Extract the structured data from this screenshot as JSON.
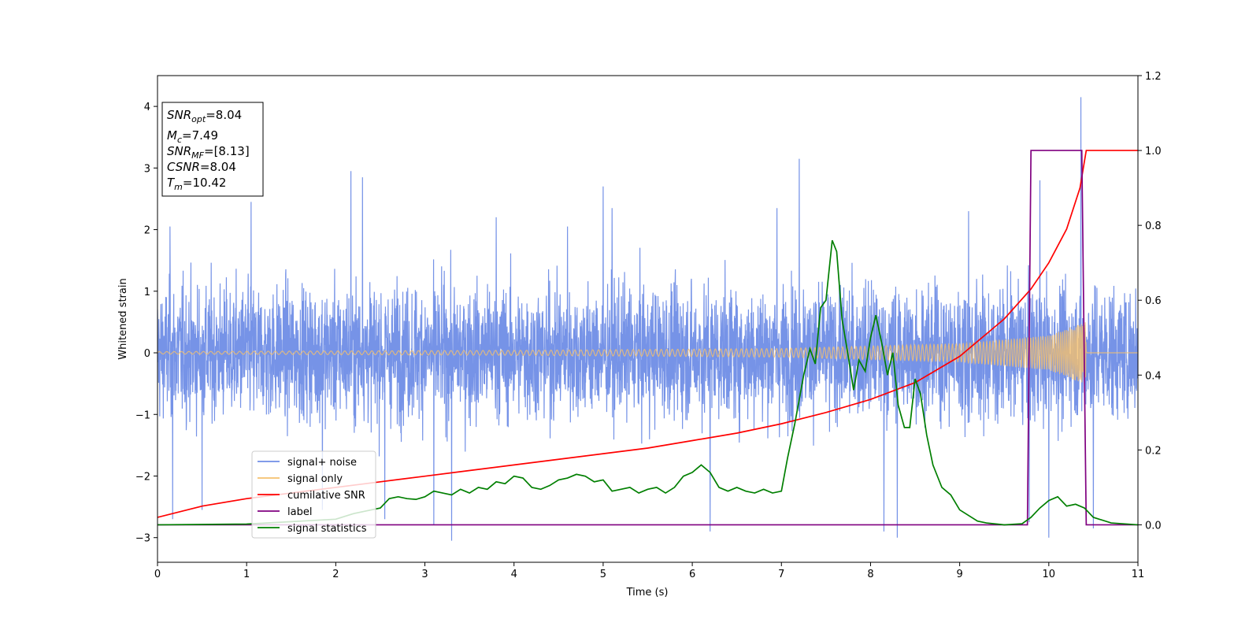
{
  "chart_data": {
    "type": "line",
    "xlabel": "Time (s)",
    "ylabel": "Whitened strain",
    "xlim": [
      0,
      11
    ],
    "ylim_left": [
      -3.4,
      4.5
    ],
    "ylim_right": [
      -0.1,
      1.2
    ],
    "x_ticks": [
      "0",
      "1",
      "2",
      "3",
      "4",
      "5",
      "6",
      "7",
      "8",
      "9",
      "10",
      "11"
    ],
    "y_ticks_left": [
      "−3",
      "−2",
      "−1",
      "0",
      "1",
      "2",
      "3",
      "4"
    ],
    "y_ticks_right": [
      "0.0",
      "0.2",
      "0.4",
      "0.6",
      "0.8",
      "1.0",
      "1.2"
    ],
    "grid": false,
    "legend_position": "lower-left",
    "legend": [
      {
        "label": "signal+ noise",
        "color": "#6f8de6"
      },
      {
        "label": "signal only",
        "color": "#f5c16e"
      },
      {
        "label": "cumilative SNR",
        "color": "#ff0000"
      },
      {
        "label": "label",
        "color": "#800080"
      },
      {
        "label": "signal statistics",
        "color": "#007f00"
      }
    ],
    "annotation_box": {
      "lines": [
        {
          "sym": "SNR",
          "sub": "opt",
          "val": "=8.04"
        },
        {
          "sym": "M",
          "sub": "c",
          "val": "=7.49"
        },
        {
          "sym": "SNR",
          "sub": "MF",
          "val": "=[8.13]"
        },
        {
          "sym": "CSNR",
          "sub": "",
          "val": "=8.04"
        },
        {
          "sym": "T",
          "sub": "m",
          "val": "=10.42"
        }
      ]
    },
    "series": [
      {
        "name": "signal+ noise",
        "axis": "left",
        "kind": "noise",
        "color": "#6f8de6",
        "x_range": [
          0,
          11
        ],
        "approx_amplitude": 1.3,
        "noise_peaks": [
          [
            0.14,
            2.05
          ],
          [
            0.17,
            -2.7
          ],
          [
            0.5,
            -2.55
          ],
          [
            1.05,
            2.45
          ],
          [
            1.85,
            -2.55
          ],
          [
            2.17,
            2.95
          ],
          [
            2.3,
            2.85
          ],
          [
            2.55,
            -2.7
          ],
          [
            3.3,
            -3.05
          ],
          [
            3.1,
            -2.8
          ],
          [
            3.8,
            2.2
          ],
          [
            4.6,
            2.05
          ],
          [
            5.0,
            2.7
          ],
          [
            5.1,
            2.35
          ],
          [
            6.2,
            -2.9
          ],
          [
            6.95,
            2.35
          ],
          [
            7.2,
            3.15
          ],
          [
            8.15,
            -2.9
          ],
          [
            8.3,
            -3.0
          ],
          [
            9.1,
            2.3
          ],
          [
            9.78,
            -2.75
          ],
          [
            9.9,
            2.8
          ],
          [
            10.0,
            2.65
          ],
          [
            10.0,
            -3.0
          ],
          [
            10.36,
            4.15
          ],
          [
            10.5,
            -2.85
          ]
        ]
      },
      {
        "name": "signal only",
        "axis": "left",
        "kind": "chirp",
        "color": "#f5c16e",
        "x_range": [
          0,
          10.42
        ],
        "envelope_points": [
          [
            0,
            0.02
          ],
          [
            4,
            0.04
          ],
          [
            7,
            0.07
          ],
          [
            9,
            0.15
          ],
          [
            10,
            0.28
          ],
          [
            10.3,
            0.45
          ],
          [
            10.42,
            0.5
          ]
        ]
      },
      {
        "name": "cumilative SNR",
        "axis": "right",
        "color": "#ff0000",
        "x": [
          0,
          0.5,
          1,
          1.5,
          2,
          2.5,
          3,
          3.5,
          4,
          4.5,
          5,
          5.5,
          6,
          6.5,
          7,
          7.5,
          8,
          8.5,
          9,
          9.5,
          9.8,
          10,
          10.2,
          10.35,
          10.42,
          10.5,
          11
        ],
        "y": [
          0.02,
          0.05,
          0.07,
          0.085,
          0.1,
          0.115,
          0.13,
          0.145,
          0.16,
          0.175,
          0.19,
          0.205,
          0.225,
          0.245,
          0.27,
          0.3,
          0.335,
          0.38,
          0.45,
          0.55,
          0.63,
          0.7,
          0.79,
          0.9,
          1.0,
          1.0,
          1.0
        ]
      },
      {
        "name": "label",
        "axis": "right",
        "color": "#800080",
        "x": [
          0,
          9.76,
          9.8,
          10.37,
          10.42,
          11
        ],
        "y": [
          0.0,
          0.0,
          1.0,
          1.0,
          0.0,
          0.0
        ]
      },
      {
        "name": "signal statistics",
        "axis": "right",
        "color": "#007f00",
        "x": [
          0,
          1,
          2,
          2.2,
          2.4,
          2.5,
          2.6,
          2.7,
          2.8,
          2.9,
          3.0,
          3.1,
          3.2,
          3.3,
          3.4,
          3.5,
          3.6,
          3.7,
          3.8,
          3.9,
          4.0,
          4.1,
          4.2,
          4.3,
          4.4,
          4.5,
          4.6,
          4.7,
          4.8,
          4.9,
          5.0,
          5.1,
          5.2,
          5.3,
          5.4,
          5.5,
          5.6,
          5.7,
          5.8,
          5.9,
          6.0,
          6.1,
          6.2,
          6.3,
          6.4,
          6.5,
          6.6,
          6.7,
          6.8,
          6.9,
          7.0,
          7.07,
          7.15,
          7.25,
          7.32,
          7.38,
          7.44,
          7.5,
          7.57,
          7.62,
          7.68,
          7.75,
          7.81,
          7.87,
          7.94,
          8.0,
          8.06,
          8.13,
          8.19,
          8.25,
          8.31,
          8.38,
          8.44,
          8.5,
          8.56,
          8.63,
          8.7,
          8.8,
          8.9,
          9.0,
          9.1,
          9.2,
          9.3,
          9.5,
          9.7,
          9.8,
          9.9,
          10.0,
          10.1,
          10.2,
          10.3,
          10.4,
          10.5,
          10.7,
          11
        ],
        "y": [
          0.0,
          0.002,
          0.015,
          0.03,
          0.04,
          0.045,
          0.07,
          0.075,
          0.07,
          0.068,
          0.075,
          0.09,
          0.085,
          0.08,
          0.095,
          0.085,
          0.1,
          0.095,
          0.115,
          0.11,
          0.13,
          0.125,
          0.1,
          0.095,
          0.105,
          0.12,
          0.125,
          0.135,
          0.13,
          0.115,
          0.12,
          0.09,
          0.095,
          0.1,
          0.085,
          0.095,
          0.1,
          0.085,
          0.1,
          0.13,
          0.14,
          0.16,
          0.14,
          0.1,
          0.09,
          0.1,
          0.09,
          0.085,
          0.095,
          0.085,
          0.09,
          0.18,
          0.27,
          0.4,
          0.47,
          0.43,
          0.58,
          0.6,
          0.76,
          0.73,
          0.55,
          0.45,
          0.36,
          0.44,
          0.41,
          0.5,
          0.56,
          0.48,
          0.4,
          0.46,
          0.32,
          0.26,
          0.26,
          0.39,
          0.35,
          0.24,
          0.16,
          0.1,
          0.08,
          0.04,
          0.025,
          0.01,
          0.005,
          0.0,
          0.003,
          0.02,
          0.045,
          0.065,
          0.075,
          0.05,
          0.055,
          0.045,
          0.02,
          0.005,
          0.0
        ]
      }
    ]
  }
}
